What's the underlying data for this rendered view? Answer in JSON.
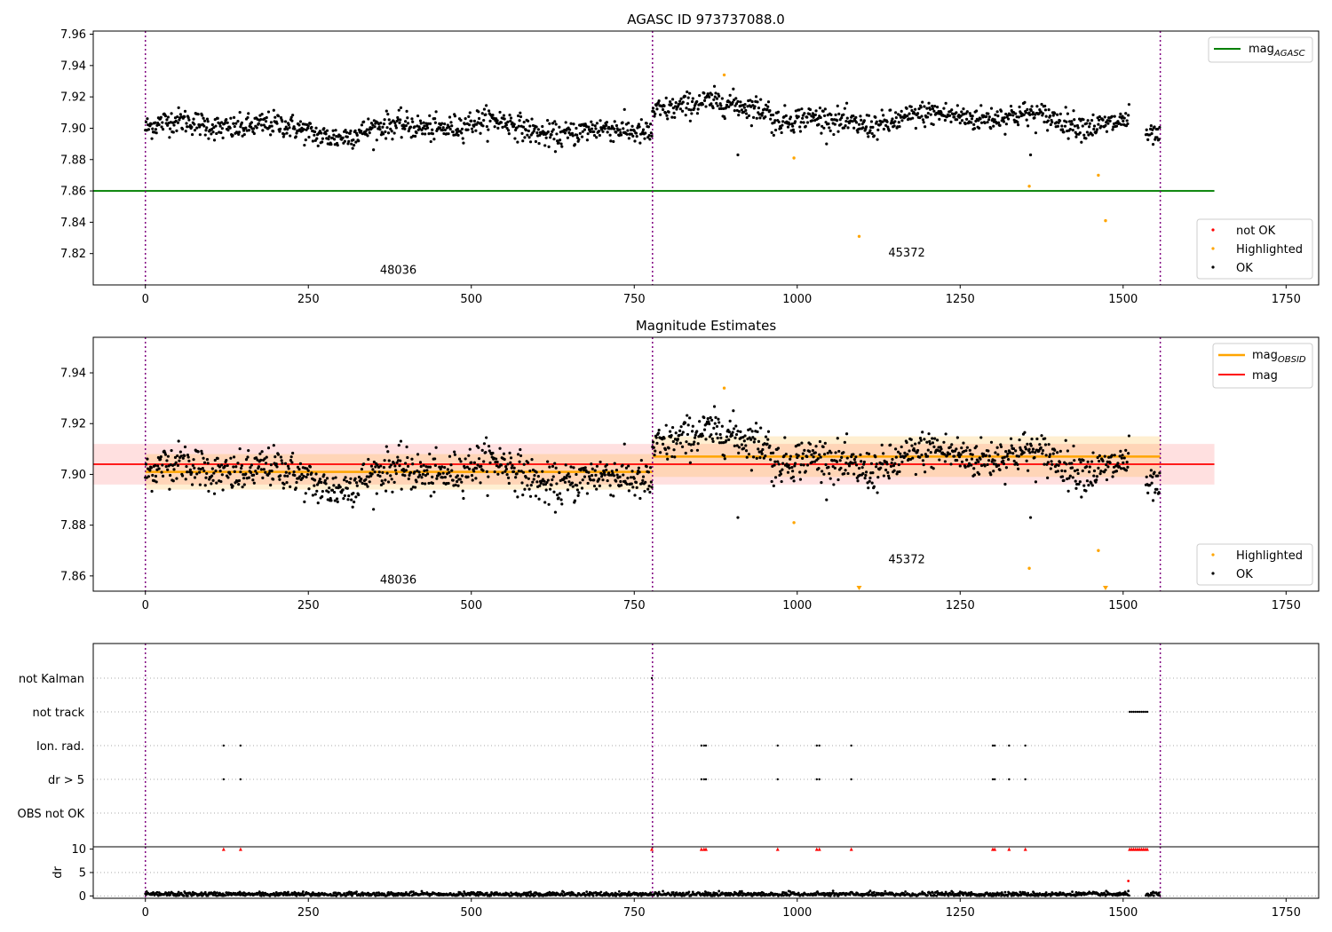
{
  "chart_data": [
    {
      "panel": "top",
      "type": "scatter",
      "title": "AGASC ID 973737088.0",
      "xlim": [
        -80,
        1800
      ],
      "ylim": [
        7.8,
        7.962
      ],
      "xticks": [
        0,
        250,
        500,
        750,
        1000,
        1250,
        1500,
        1750
      ],
      "yticks": [
        7.82,
        7.84,
        7.86,
        7.88,
        7.9,
        7.92,
        7.94,
        7.96
      ],
      "ytick_labels": [
        "7.82",
        "7.84",
        "7.86",
        "7.88",
        "7.90",
        "7.92",
        "7.94",
        "7.96"
      ],
      "obs_boundaries": [
        0,
        778,
        1557
      ],
      "obs_labels": [
        {
          "text": "48036",
          "x": 388,
          "y": 7.807
        },
        {
          "text": "45372",
          "x": 1168,
          "y": 7.818
        }
      ],
      "lines": [
        {
          "name": "mag_AGASC",
          "y": 7.86,
          "x": [
            -80,
            1640
          ],
          "color": "#008000"
        }
      ],
      "ok_series": [
        {
          "x_start": 0,
          "x_end": 778,
          "base": 7.9,
          "amp": 0.006,
          "noise": 0.004
        },
        {
          "x_start": 778,
          "x_end": 960,
          "base": 7.913,
          "amp": 0.004,
          "noise": 0.004
        },
        {
          "x_start": 960,
          "x_end": 1510,
          "base": 7.906,
          "amp": 0.005,
          "noise": 0.004
        },
        {
          "x_start": 1535,
          "x_end": 1557,
          "base": 7.895,
          "amp": 0.002,
          "noise": 0.003
        }
      ],
      "ok_outliers": [
        {
          "x": 909,
          "y": 7.883
        },
        {
          "x": 1358,
          "y": 7.883
        }
      ],
      "highlighted": [
        {
          "x": 888,
          "y": 7.934
        },
        {
          "x": 995,
          "y": 7.881
        },
        {
          "x": 1095,
          "y": 7.831
        },
        {
          "x": 1356,
          "y": 7.863
        },
        {
          "x": 1462,
          "y": 7.87
        },
        {
          "x": 1473,
          "y": 7.841
        }
      ],
      "legend_upper": [
        {
          "label": "mag",
          "sub": "AGASC",
          "color": "#008000"
        }
      ],
      "legend_lower": [
        {
          "label": "not OK",
          "color": "#ff0000"
        },
        {
          "label": "Highlighted",
          "color": "#ffa500"
        },
        {
          "label": "OK",
          "color": "#000000"
        }
      ]
    },
    {
      "panel": "middle",
      "type": "scatter",
      "title": "Magnitude Estimates",
      "xlim": [
        -80,
        1800
      ],
      "ylim": [
        7.854,
        7.954
      ],
      "xticks": [
        0,
        250,
        500,
        750,
        1000,
        1250,
        1500,
        1750
      ],
      "yticks": [
        7.86,
        7.88,
        7.9,
        7.92,
        7.94
      ],
      "ytick_labels": [
        "7.86",
        "7.88",
        "7.90",
        "7.92",
        "7.94"
      ],
      "obs_boundaries": [
        0,
        778,
        1557
      ],
      "obs_labels": [
        {
          "text": "48036",
          "x": 388,
          "y": 7.857
        },
        {
          "text": "45372",
          "x": 1168,
          "y": 7.865
        }
      ],
      "mag_band": {
        "y": 7.904,
        "lo": 7.896,
        "hi": 7.912,
        "x": [
          -80,
          1640
        ],
        "color": "#ff0000"
      },
      "obsid_segments": [
        {
          "x": [
            0,
            778
          ],
          "y": 7.901,
          "lo": 7.894,
          "hi": 7.908
        },
        {
          "x": [
            778,
            1557
          ],
          "y": 7.907,
          "lo": 7.899,
          "hi": 7.915
        }
      ],
      "ok_series": [
        {
          "x_start": 0,
          "x_end": 778,
          "base": 7.9,
          "amp": 0.006,
          "noise": 0.004
        },
        {
          "x_start": 778,
          "x_end": 960,
          "base": 7.913,
          "amp": 0.004,
          "noise": 0.004
        },
        {
          "x_start": 960,
          "x_end": 1510,
          "base": 7.906,
          "amp": 0.005,
          "noise": 0.004
        },
        {
          "x_start": 1535,
          "x_end": 1557,
          "base": 7.895,
          "amp": 0.002,
          "noise": 0.003
        }
      ],
      "ok_outliers": [
        {
          "x": 909,
          "y": 7.883
        },
        {
          "x": 1358,
          "y": 7.883
        }
      ],
      "highlighted": [
        {
          "x": 888,
          "y": 7.934
        },
        {
          "x": 995,
          "y": 7.881
        },
        {
          "x": 1356,
          "y": 7.863
        },
        {
          "x": 1462,
          "y": 7.87
        }
      ],
      "highlighted_offscale": [
        {
          "x": 1095
        },
        {
          "x": 1473
        }
      ],
      "legend_upper": [
        {
          "label": "mag",
          "sub": "OBSID",
          "color": "#ffa500"
        },
        {
          "label": "mag",
          "sub": "",
          "color": "#ff0000"
        }
      ],
      "legend_lower": [
        {
          "label": "Highlighted",
          "color": "#ffa500"
        },
        {
          "label": "OK",
          "color": "#000000"
        }
      ]
    },
    {
      "panel": "flags",
      "type": "scatter",
      "xlim": [
        -80,
        1800
      ],
      "categories": [
        "not Kalman",
        "not track",
        "Ion. rad.",
        "dr > 5",
        "OBS not OK"
      ],
      "obs_boundaries": [
        0,
        778,
        1557
      ],
      "flags": {
        "not Kalman": [
          777
        ],
        "not track": [
          1510,
          1513,
          1516,
          1519,
          1522,
          1525,
          1528,
          1531,
          1534,
          1537
        ],
        "Ion. rad.": [
          120,
          146,
          853,
          857,
          860,
          970,
          1030,
          1034,
          1083,
          1300,
          1303,
          1325,
          1350
        ],
        "dr > 5": [
          120,
          146,
          853,
          857,
          860,
          970,
          1030,
          1034,
          1083,
          1300,
          1303,
          1325,
          1350
        ],
        "OBS not OK": []
      }
    },
    {
      "panel": "dr",
      "type": "scatter",
      "ylabel": "dr",
      "xlim": [
        -80,
        1800
      ],
      "ylim": [
        -0.5,
        10.5
      ],
      "xticks": [
        0,
        250,
        500,
        750,
        1000,
        1250,
        1500,
        1750
      ],
      "yticks": [
        0,
        5,
        10
      ],
      "ytick_labels": [
        "0",
        "5",
        "10"
      ],
      "obs_boundaries": [
        0,
        778,
        1557
      ],
      "clipped_high": [
        120,
        146,
        777,
        853,
        857,
        860,
        970,
        1030,
        1034,
        1083,
        1300,
        1303,
        1325,
        1350,
        1510,
        1513,
        1516,
        1519,
        1522,
        1525,
        1528,
        1531,
        1534,
        1537
      ],
      "extra_points": [
        {
          "x": 1508,
          "y": 3.2
        }
      ]
    }
  ]
}
